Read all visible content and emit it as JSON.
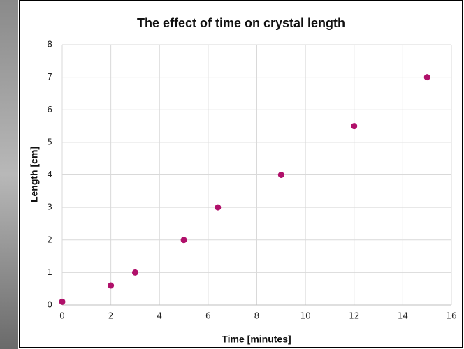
{
  "chart_data": {
    "type": "scatter",
    "title": "The effect of time on crystal length",
    "x_label": "Time [minutes]",
    "y_label": "Length [cm]",
    "x": [
      0,
      2,
      3,
      5,
      6.4,
      9,
      12,
      15
    ],
    "values": [
      0.1,
      0.6,
      1,
      2,
      3,
      4,
      5.5,
      7
    ],
    "color": "#b0106a",
    "xlim": [
      0,
      16
    ],
    "xticks": [
      0,
      2,
      4,
      6,
      8,
      10,
      12,
      14,
      16
    ],
    "ylim": [
      0,
      8
    ],
    "yticks": [
      0,
      1,
      2,
      3,
      4,
      5,
      6,
      7,
      8
    ],
    "grid": true
  }
}
